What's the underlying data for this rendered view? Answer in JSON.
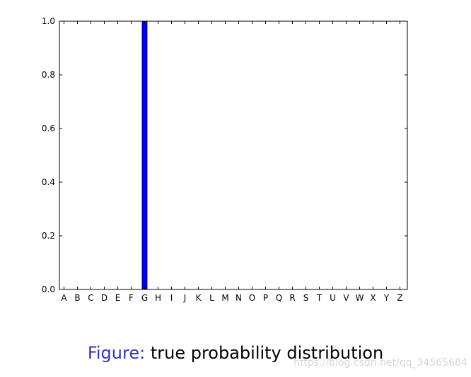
{
  "chart_data": {
    "type": "bar",
    "categories": [
      "A",
      "B",
      "C",
      "D",
      "E",
      "F",
      "G",
      "H",
      "I",
      "J",
      "K",
      "L",
      "M",
      "N",
      "O",
      "P",
      "Q",
      "R",
      "S",
      "T",
      "U",
      "V",
      "W",
      "X",
      "Y",
      "Z"
    ],
    "values": [
      0,
      0,
      0,
      0,
      0,
      0,
      1.0,
      0,
      0,
      0,
      0,
      0,
      0,
      0,
      0,
      0,
      0,
      0,
      0,
      0,
      0,
      0,
      0,
      0,
      0,
      0
    ],
    "ylim": [
      0,
      1.0
    ],
    "yticks": [
      "0.0",
      "0.2",
      "0.4",
      "0.6",
      "0.8",
      "1.0"
    ],
    "bar_color": "#0000ff",
    "grid": false
  },
  "caption": {
    "prefix": "Figure:",
    "text": "true probability distribution"
  },
  "watermark": "https://blog.csdn.net/qq_34565684"
}
